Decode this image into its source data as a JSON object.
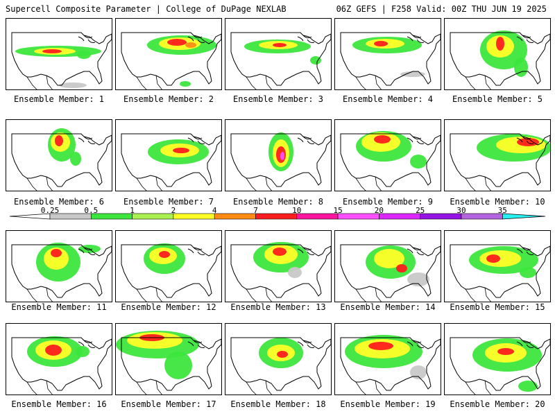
{
  "header": {
    "left": "Supercell Composite Parameter | College of DuPage NEXLAB",
    "right": "06Z GEFS | F258 Valid: 00Z THU JUN 19 2025"
  },
  "members": [
    {
      "label": "Ensemble Member: 1"
    },
    {
      "label": "Ensemble Member: 2"
    },
    {
      "label": "Ensemble Member: 3"
    },
    {
      "label": "Ensemble Member: 4"
    },
    {
      "label": "Ensemble Member: 5"
    },
    {
      "label": "Ensemble Member: 6"
    },
    {
      "label": "Ensemble Member: 7"
    },
    {
      "label": "Ensemble Member: 8"
    },
    {
      "label": "Ensemble Member: 9"
    },
    {
      "label": "Ensemble Member: 10"
    },
    {
      "label": "Ensemble Member: 11"
    },
    {
      "label": "Ensemble Member: 12"
    },
    {
      "label": "Ensemble Member: 13"
    },
    {
      "label": "Ensemble Member: 14"
    },
    {
      "label": "Ensemble Member: 15"
    },
    {
      "label": "Ensemble Member: 16"
    },
    {
      "label": "Ensemble Member: 17"
    },
    {
      "label": "Ensemble Member: 18"
    },
    {
      "label": "Ensemble Member: 19"
    },
    {
      "label": "Ensemble Member: 20"
    }
  ],
  "colorbar": {
    "ticks": [
      "0.25",
      "0.5",
      "1",
      "2",
      "4",
      "7",
      "10",
      "15",
      "20",
      "25",
      "30",
      "35"
    ],
    "colors": {
      "gray": "#c8c8c8",
      "green": "#3ce63c",
      "lightgreen": "#aaf050",
      "yellow": "#ffff28",
      "orange": "#ff8c14",
      "red": "#ff1e1e",
      "magenta": "#ff14a0",
      "pink": "#ff50ff",
      "violet": "#dc28ff",
      "purple": "#9614e6",
      "lavender": "#b464dc",
      "cyan": "#28f0f0"
    }
  }
}
